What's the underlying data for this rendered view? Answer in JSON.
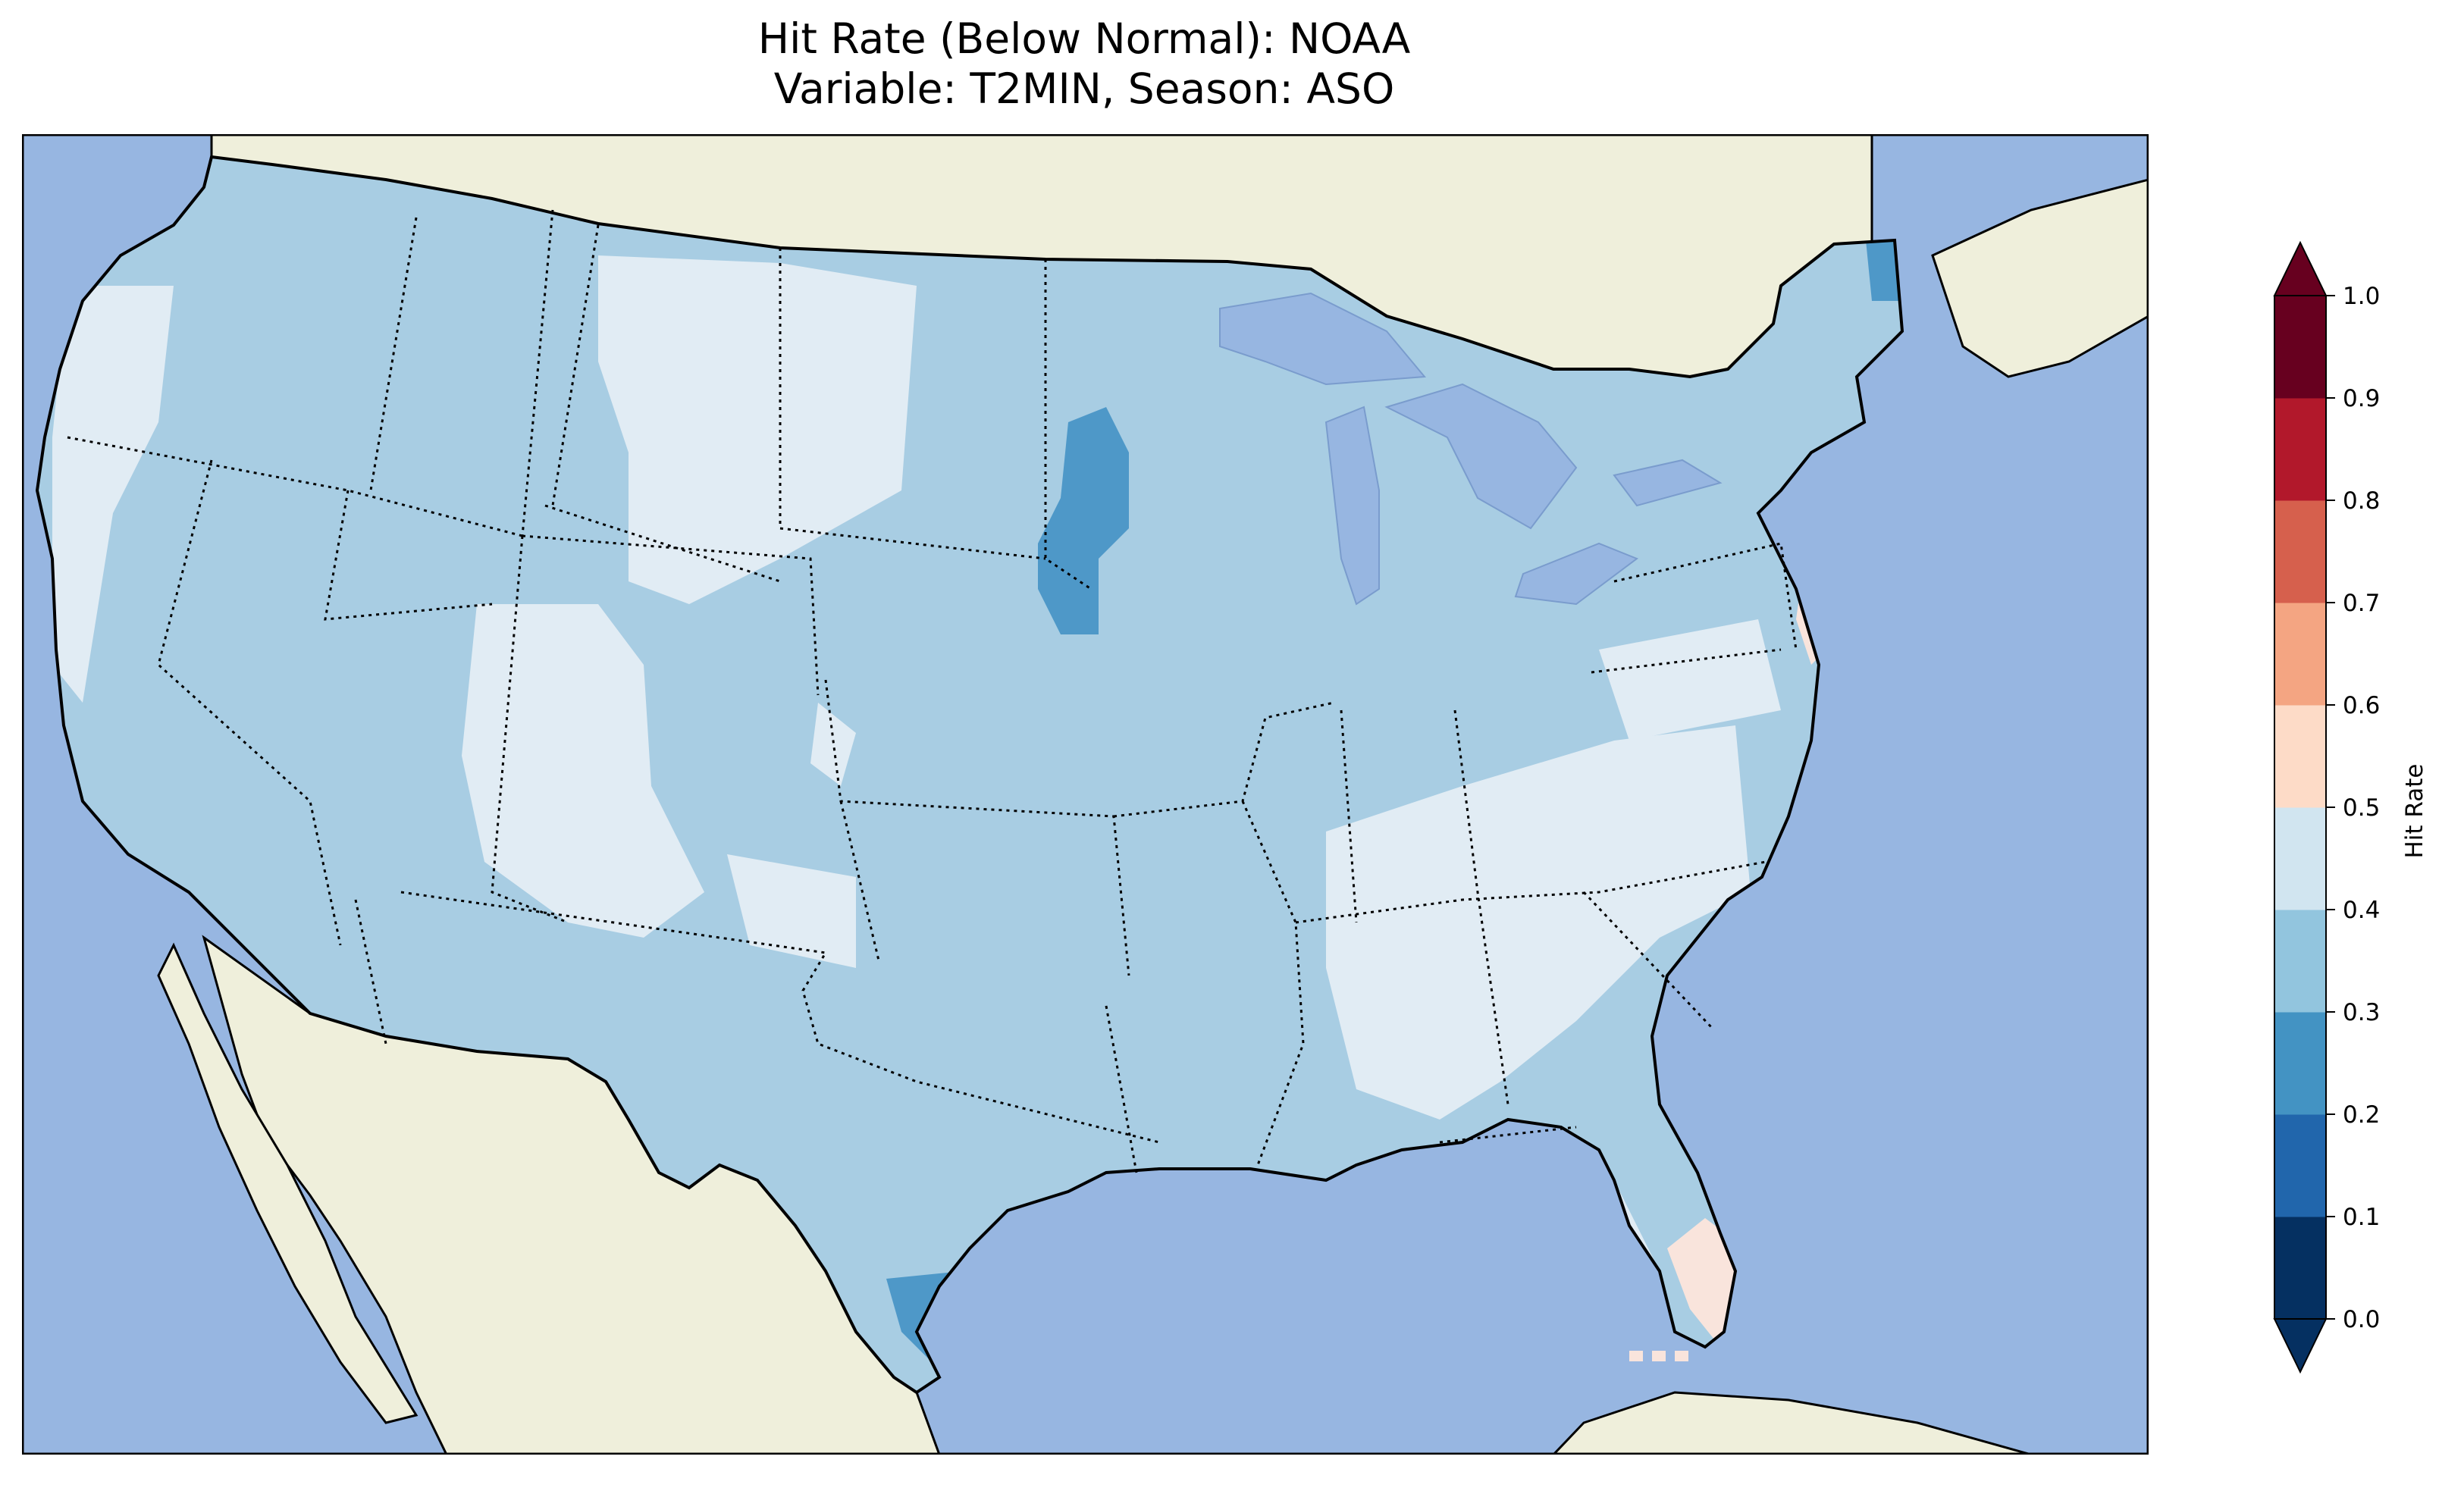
{
  "title": {
    "line1": "Hit Rate (Below Normal): NOAA",
    "line2": "Variable: T2MIN, Season: ASO"
  },
  "map": {
    "region": "Contiguous United States",
    "ocean_color": "#97b6e1",
    "land_color": "#efefdb",
    "borders": "state boundaries dotted, coastlines solid"
  },
  "colorbar": {
    "label": "Hit Rate",
    "ticks": [
      "0.0",
      "0.1",
      "0.2",
      "0.3",
      "0.4",
      "0.5",
      "0.6",
      "0.7",
      "0.8",
      "0.9",
      "1.0"
    ],
    "colors": [
      "#053061",
      "#2166ac",
      "#4393c3",
      "#92c5de",
      "#d1e5f0",
      "#fddbc7",
      "#f4a582",
      "#d6604d",
      "#b2182b",
      "#67001f"
    ],
    "extend": "both"
  },
  "chart_data": {
    "type": "heatmap",
    "title": "Hit Rate (Below Normal): NOAA",
    "subtitle": "Variable: T2MIN, Season: ASO",
    "colorbar_label": "Hit Rate",
    "levels": [
      0.0,
      0.1,
      0.2,
      0.3,
      0.4,
      0.5,
      0.6,
      0.7,
      0.8,
      0.9,
      1.0
    ],
    "dominant_range": [
      0.3,
      0.4
    ],
    "regions": [
      {
        "area": "Most of CONUS",
        "range": [
          0.3,
          0.4
        ]
      },
      {
        "area": "Wyoming / Nebraska Panhandle / North Dakota",
        "range": [
          0.4,
          0.5
        ]
      },
      {
        "area": "Eastern Utah / Western Colorado",
        "range": [
          0.4,
          0.5
        ]
      },
      {
        "area": "Pacific Coast (N. California / Oregon)",
        "range": [
          0.4,
          0.5
        ]
      },
      {
        "area": "Tennessee / Kentucky / Alabama / Virginia / N. Florida",
        "range": [
          0.4,
          0.5
        ]
      },
      {
        "area": "Pennsylvania / Maryland",
        "range": [
          0.4,
          0.5
        ]
      },
      {
        "area": "Eastern Minnesota / Iowa border",
        "range": [
          0.2,
          0.3
        ]
      },
      {
        "area": "Northern Maine",
        "range": [
          0.2,
          0.3
        ]
      },
      {
        "area": "South Texas",
        "range": [
          0.2,
          0.3
        ]
      },
      {
        "area": "Southern Florida",
        "range": [
          0.5,
          0.6
        ]
      },
      {
        "area": "New Jersey",
        "range": [
          0.5,
          0.6
        ]
      }
    ]
  }
}
